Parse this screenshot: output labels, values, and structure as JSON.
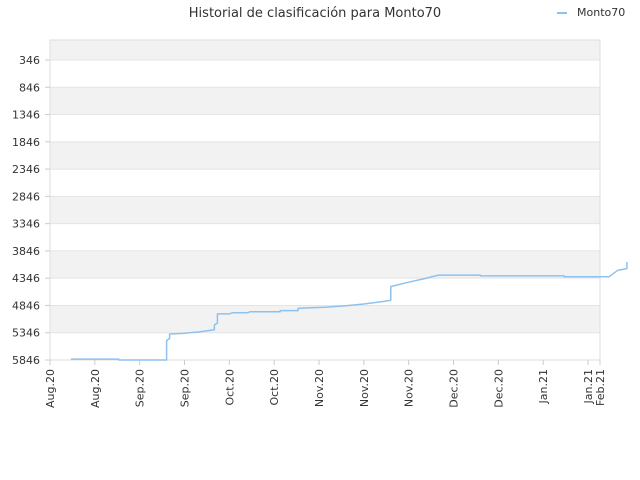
{
  "chart_data": {
    "type": "line",
    "title": "Historial de clasificación para Monto70",
    "xlabel": "",
    "ylabel": "",
    "y_inverted": true,
    "ylim": [
      346,
      5846
    ],
    "y_ticks": [
      346,
      846,
      1346,
      1846,
      2346,
      2846,
      3346,
      3846,
      4346,
      4846,
      5346,
      5846
    ],
    "x_range": [
      "2020-08-01",
      "2021-02-01"
    ],
    "x_ticks": [
      {
        "date": "2020-08-01",
        "label": "Aug.20"
      },
      {
        "date": "2020-08-16",
        "label": "Aug.20"
      },
      {
        "date": "2020-08-31",
        "label": "Sep.20"
      },
      {
        "date": "2020-09-15",
        "label": "Sep.20"
      },
      {
        "date": "2020-09-30",
        "label": "Oct.20"
      },
      {
        "date": "2020-10-15",
        "label": "Oct.20"
      },
      {
        "date": "2020-10-30",
        "label": "Nov.20"
      },
      {
        "date": "2020-11-14",
        "label": "Nov.20"
      },
      {
        "date": "2020-11-29",
        "label": "Nov.20"
      },
      {
        "date": "2020-12-14",
        "label": "Dec.20"
      },
      {
        "date": "2020-12-29",
        "label": "Dec.20"
      },
      {
        "date": "2021-01-13",
        "label": "Jan.21"
      },
      {
        "date": "2021-01-28",
        "label": "Jan.21"
      },
      {
        "date": "2021-02-01",
        "label": "Feb.21"
      }
    ],
    "grid": true,
    "legend_position": "top-right",
    "series": [
      {
        "name": "Monto70",
        "color": "#8fc1ef",
        "points": [
          {
            "x": "2020-08-08",
            "y": 5830
          },
          {
            "x": "2020-08-24",
            "y": 5830
          },
          {
            "x": "2020-08-24",
            "y": 5846
          },
          {
            "x": "2020-09-09",
            "y": 5846
          },
          {
            "x": "2020-09-09",
            "y": 5490
          },
          {
            "x": "2020-09-10",
            "y": 5450
          },
          {
            "x": "2020-09-10",
            "y": 5370
          },
          {
            "x": "2020-09-14",
            "y": 5360
          },
          {
            "x": "2020-09-20",
            "y": 5330
          },
          {
            "x": "2020-09-25",
            "y": 5290
          },
          {
            "x": "2020-09-25",
            "y": 5200
          },
          {
            "x": "2020-09-26",
            "y": 5170
          },
          {
            "x": "2020-09-26",
            "y": 5000
          },
          {
            "x": "2020-09-30",
            "y": 5000
          },
          {
            "x": "2020-10-01",
            "y": 4980
          },
          {
            "x": "2020-10-06",
            "y": 4980
          },
          {
            "x": "2020-10-07",
            "y": 4960
          },
          {
            "x": "2020-10-17",
            "y": 4960
          },
          {
            "x": "2020-10-17",
            "y": 4940
          },
          {
            "x": "2020-10-23",
            "y": 4940
          },
          {
            "x": "2020-10-23",
            "y": 4900
          },
          {
            "x": "2020-10-26",
            "y": 4890
          },
          {
            "x": "2020-11-01",
            "y": 4880
          },
          {
            "x": "2020-11-08",
            "y": 4850
          },
          {
            "x": "2020-11-14",
            "y": 4820
          },
          {
            "x": "2020-11-21",
            "y": 4770
          },
          {
            "x": "2020-11-23",
            "y": 4750
          },
          {
            "x": "2020-11-23",
            "y": 4500
          },
          {
            "x": "2020-11-28",
            "y": 4430
          },
          {
            "x": "2020-12-04",
            "y": 4360
          },
          {
            "x": "2020-12-09",
            "y": 4290
          },
          {
            "x": "2020-12-23",
            "y": 4290
          },
          {
            "x": "2020-12-23",
            "y": 4305
          },
          {
            "x": "2021-01-20",
            "y": 4305
          },
          {
            "x": "2021-01-20",
            "y": 4320
          },
          {
            "x": "2021-02-04",
            "y": 4320
          },
          {
            "x": "2021-02-07",
            "y": 4200
          },
          {
            "x": "2021-02-10",
            "y": 4170
          },
          {
            "x": "2021-02-10",
            "y": 4050
          }
        ]
      }
    ]
  }
}
